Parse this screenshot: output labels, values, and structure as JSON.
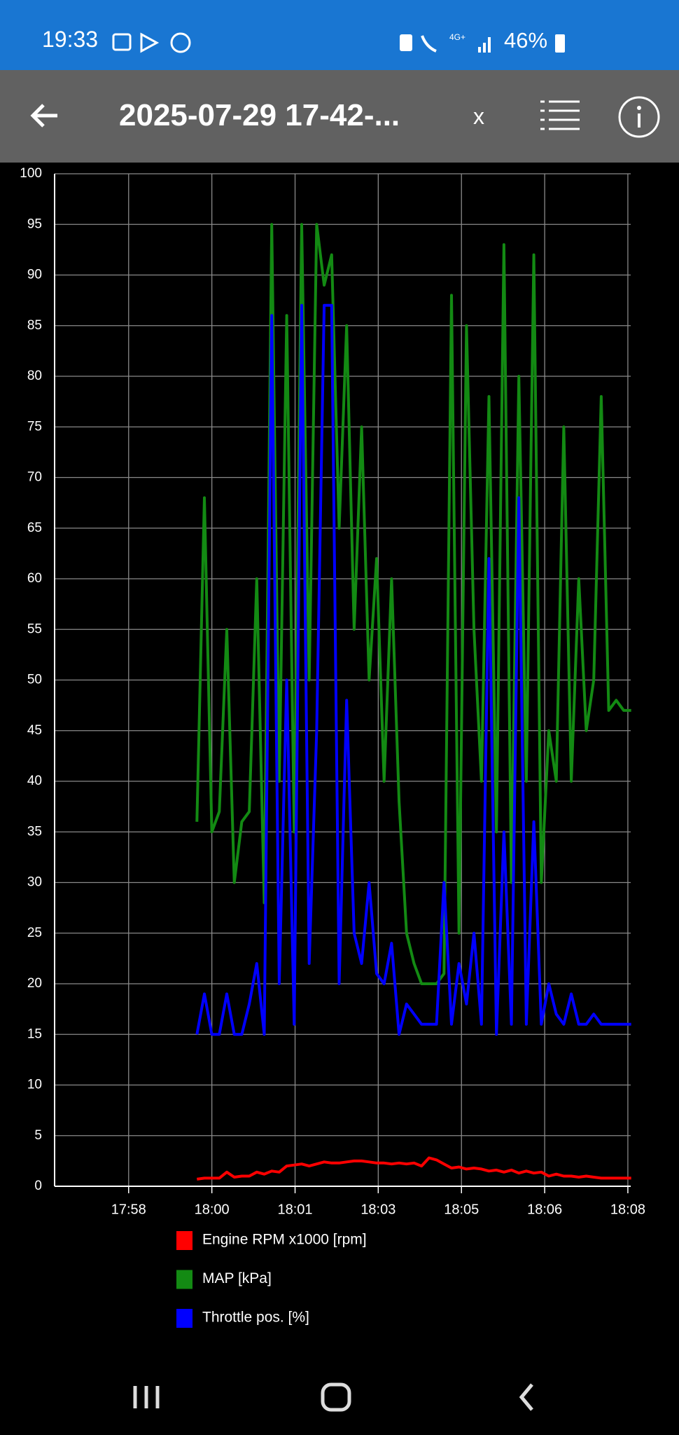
{
  "status_bar": {
    "time": "19:33",
    "network": "4G+",
    "battery": "46%"
  },
  "header": {
    "title": "2025-07-29 17-42-...",
    "close": "x"
  },
  "chart_data": {
    "type": "line",
    "x": [
      1079.7,
      1079.85,
      1080.0,
      1080.15,
      1080.3,
      1080.45,
      1080.6,
      1080.75,
      1080.9,
      1081.05,
      1081.2,
      1081.35,
      1081.5,
      1081.65,
      1081.8,
      1081.95,
      1082.1,
      1082.25,
      1082.4,
      1082.55,
      1082.7,
      1082.85,
      1083.0,
      1083.15,
      1083.3,
      1083.45,
      1083.6,
      1083.75,
      1083.9,
      1084.05,
      1084.2,
      1084.35,
      1084.5,
      1084.65,
      1084.8,
      1084.95,
      1085.1,
      1085.25,
      1085.4,
      1085.55,
      1085.7,
      1085.85,
      1086.0,
      1086.15,
      1086.3,
      1086.45,
      1086.6,
      1086.75,
      1086.9,
      1087.05,
      1087.2,
      1087.35,
      1087.5,
      1087.65,
      1087.8,
      1087.95,
      1088.1,
      1088.25,
      1088.4
    ],
    "series": [
      {
        "name": "Engine RPM x1000 [rpm]",
        "color": "#ff0000",
        "values": [
          0.7,
          0.8,
          0.8,
          0.8,
          1.4,
          0.9,
          1.0,
          1.0,
          1.4,
          1.2,
          1.5,
          1.4,
          2.0,
          2.1,
          2.2,
          2.0,
          2.2,
          2.4,
          2.3,
          2.3,
          2.4,
          2.5,
          2.5,
          2.4,
          2.3,
          2.3,
          2.2,
          2.3,
          2.2,
          2.3,
          2.0,
          2.8,
          2.6,
          2.2,
          1.8,
          1.9,
          1.7,
          1.8,
          1.7,
          1.5,
          1.6,
          1.4,
          1.6,
          1.3,
          1.5,
          1.3,
          1.4,
          1.0,
          1.2,
          1.0,
          1.0,
          0.9,
          1.0,
          0.9,
          0.8,
          0.8,
          0.8,
          0.8,
          0.8
        ]
      },
      {
        "name": "MAP [kPa]",
        "color": "#138a13",
        "values": [
          36,
          68,
          35,
          37,
          55,
          30,
          36,
          37,
          60,
          28,
          95,
          40,
          86,
          35,
          95,
          50,
          95,
          89,
          92,
          65,
          85,
          55,
          75,
          50,
          62,
          40,
          60,
          38,
          25,
          22,
          20,
          20,
          20,
          21,
          88,
          25,
          85,
          55,
          40,
          78,
          35,
          93,
          30,
          80,
          40,
          92,
          30,
          45,
          40,
          75,
          40,
          60,
          45,
          50,
          78,
          47,
          48,
          47,
          47
        ]
      },
      {
        "name": "Throttle pos. [%]",
        "color": "#0000ff",
        "values": [
          15,
          19,
          15,
          15,
          19,
          15,
          15,
          18,
          22,
          15,
          86,
          20,
          50,
          16,
          87,
          22,
          45,
          87,
          87,
          20,
          48,
          25,
          22,
          30,
          21,
          20,
          24,
          15,
          18,
          17,
          16,
          16,
          16,
          30,
          16,
          22,
          18,
          25,
          16,
          62,
          15,
          35,
          16,
          68,
          16,
          36,
          16,
          20,
          17,
          16,
          19,
          16,
          16,
          17,
          16,
          16,
          16,
          16,
          16
        ]
      }
    ],
    "xlim": [
      1076.85,
      1088.39
    ],
    "xticks": [
      {
        "value": 1078.333,
        "label": "17:58"
      },
      {
        "value": 1080,
        "label": "18:00"
      },
      {
        "value": 1081.667,
        "label": "18:01"
      },
      {
        "value": 1083.333,
        "label": "18:03"
      },
      {
        "value": 1085,
        "label": "18:05"
      },
      {
        "value": 1086.667,
        "label": "18:06"
      },
      {
        "value": 1088.333,
        "label": "18:08"
      }
    ],
    "ylim": [
      0,
      100
    ],
    "yticks": [
      0,
      5,
      10,
      15,
      20,
      25,
      30,
      35,
      40,
      45,
      50,
      55,
      60,
      65,
      70,
      75,
      80,
      85,
      90,
      95,
      100
    ],
    "grid": true
  }
}
